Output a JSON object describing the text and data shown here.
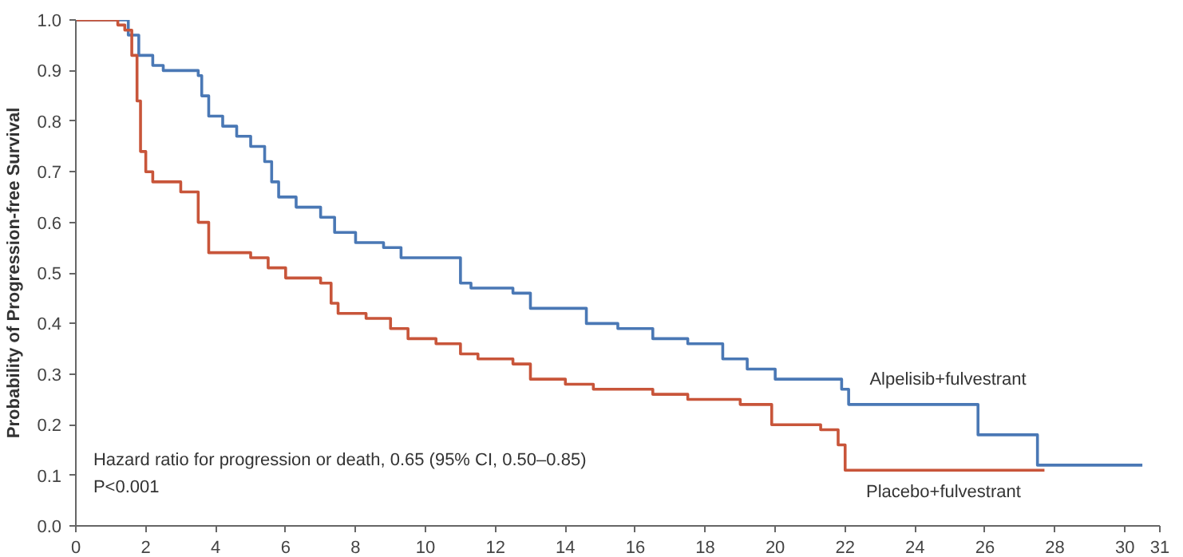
{
  "chart_data": {
    "type": "step",
    "ylabel": "Probability of Progression-free Survival",
    "xlim": [
      0,
      31
    ],
    "ylim": [
      0,
      1.0
    ],
    "xticks": [
      0,
      2,
      4,
      6,
      8,
      10,
      12,
      14,
      16,
      18,
      20,
      22,
      24,
      26,
      28,
      30,
      31
    ],
    "yticks": [
      {
        "value": 0,
        "label": "0.0"
      },
      {
        "value": 0.1,
        "label": "0.1"
      },
      {
        "value": 0.2,
        "label": "0.2"
      },
      {
        "value": 0.3,
        "label": "0.3"
      },
      {
        "value": 0.4,
        "label": "0.4"
      },
      {
        "value": 0.5,
        "label": "0.5"
      },
      {
        "value": 0.6,
        "label": "0.6"
      },
      {
        "value": 0.7,
        "label": "0.7"
      },
      {
        "value": 0.8,
        "label": "0.8"
      },
      {
        "value": 0.9,
        "label": "0.9"
      },
      {
        "value": 1.0,
        "label": "1.0"
      }
    ],
    "grid": false,
    "marker": "none",
    "line_style": "solid",
    "series": [
      {
        "name": "Alpelisib+fulvestrant",
        "color": "#4a78b5",
        "x": [
          0,
          1.5,
          1.8,
          2.2,
          2.5,
          3.5,
          3.6,
          3.8,
          4.2,
          4.6,
          5.0,
          5.4,
          5.6,
          5.8,
          6.3,
          7.0,
          7.4,
          8.0,
          8.8,
          9.3,
          11.0,
          11.3,
          12.5,
          13.0,
          14.6,
          15.5,
          16.5,
          17.5,
          18.5,
          19.2,
          20.0,
          21.9,
          22.1,
          25.8,
          27.5,
          30.5
        ],
        "values": [
          1.0,
          0.97,
          0.93,
          0.91,
          0.9,
          0.89,
          0.85,
          0.81,
          0.79,
          0.77,
          0.75,
          0.72,
          0.68,
          0.65,
          0.63,
          0.61,
          0.58,
          0.56,
          0.55,
          0.53,
          0.48,
          0.47,
          0.46,
          0.43,
          0.4,
          0.39,
          0.37,
          0.36,
          0.33,
          0.31,
          0.29,
          0.27,
          0.24,
          0.18,
          0.12,
          0.12
        ]
      },
      {
        "name": "Placebo+fulvestrant",
        "color": "#c8553a",
        "x": [
          0,
          1.2,
          1.4,
          1.6,
          1.75,
          1.85,
          2.0,
          2.2,
          3.0,
          3.5,
          3.8,
          5.0,
          5.5,
          6.0,
          7.0,
          7.3,
          7.5,
          8.3,
          9.0,
          9.5,
          10.3,
          11.0,
          11.5,
          12.5,
          13.0,
          14.0,
          14.8,
          16.5,
          17.5,
          19.0,
          19.9,
          21.3,
          21.8,
          22.0,
          27.7
        ],
        "values": [
          1.0,
          0.99,
          0.98,
          0.93,
          0.84,
          0.74,
          0.7,
          0.68,
          0.66,
          0.6,
          0.54,
          0.53,
          0.51,
          0.49,
          0.48,
          0.44,
          0.42,
          0.41,
          0.39,
          0.37,
          0.36,
          0.34,
          0.33,
          0.32,
          0.29,
          0.28,
          0.27,
          0.26,
          0.25,
          0.24,
          0.2,
          0.19,
          0.16,
          0.11,
          0.11
        ]
      }
    ],
    "annotations": [
      "Hazard ratio for progression or death, 0.65 (95% CI, 0.50–0.85)",
      "P<0.001"
    ]
  }
}
